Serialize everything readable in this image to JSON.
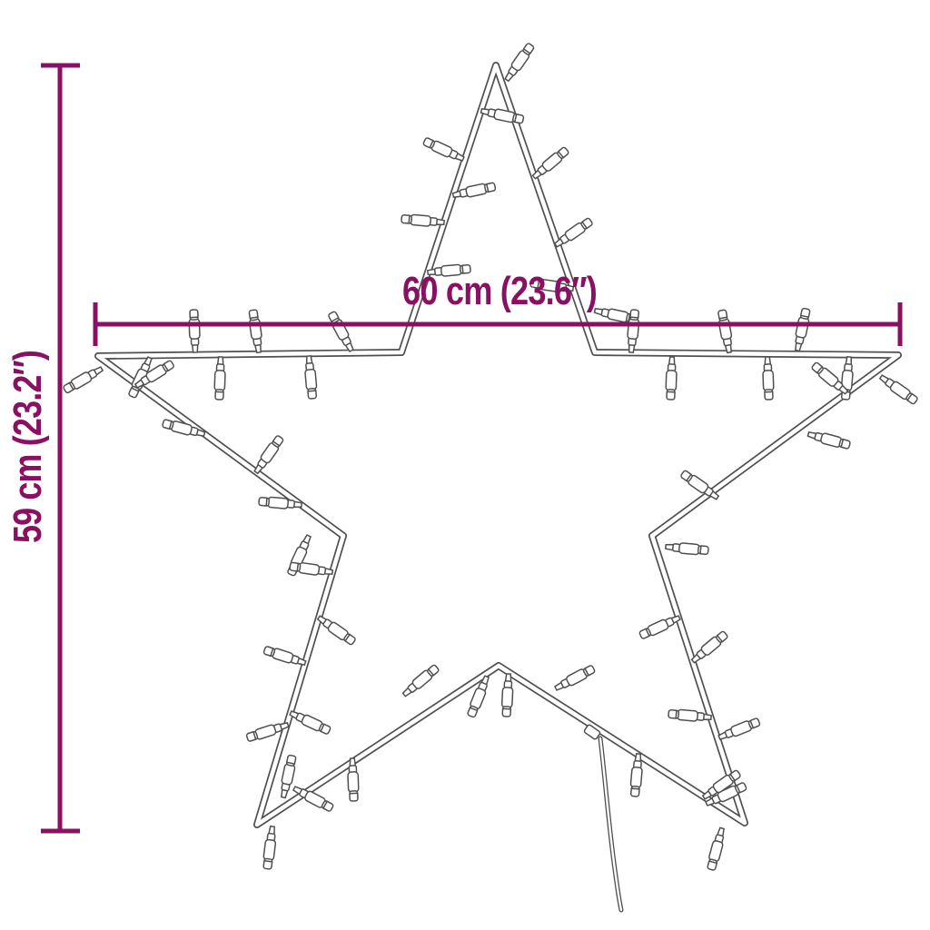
{
  "diagram": {
    "width_label": "60 cm (23.6″)",
    "height_label": "59 cm (23.2″)",
    "dimension_color": "#8a1063",
    "outline_color": "#4f4f4f",
    "background_color": "#ffffff"
  }
}
